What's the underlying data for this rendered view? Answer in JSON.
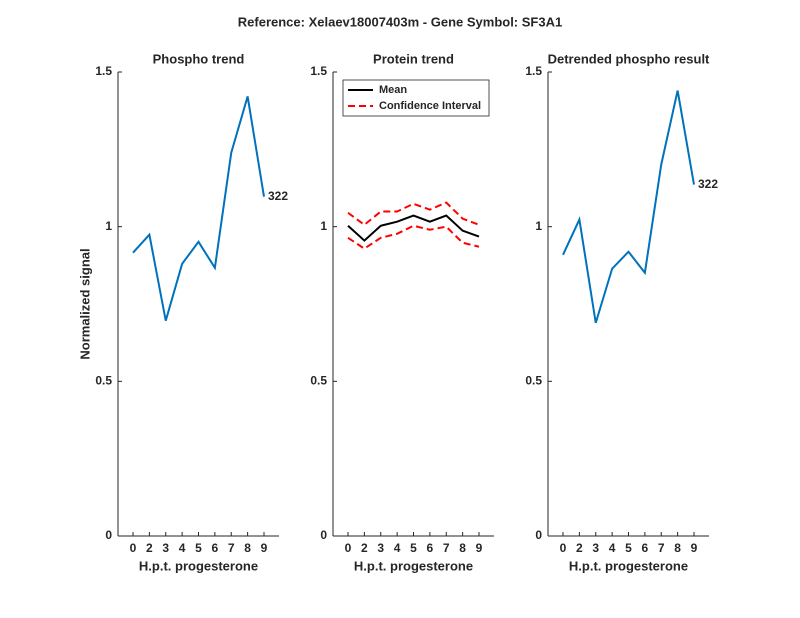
{
  "title": "Reference:  Xelaev18007403m - Gene Symbol:  SF3A1",
  "chart_data": [
    {
      "type": "line",
      "title": "Phospho trend",
      "x_label": "H.p.t. progesterone",
      "y_label": "Normalized signal",
      "categories": [
        0,
        2,
        3,
        4,
        5,
        6,
        7,
        8,
        9
      ],
      "series": [
        {
          "color": "#0072bd",
          "values": [
            0.916,
            0.974,
            0.696,
            0.88,
            0.951,
            0.867,
            1.239,
            1.421,
            1.097
          ]
        }
      ],
      "annotation": "322",
      "ylim": [
        0,
        1.5
      ],
      "yticks": [
        0,
        0.5,
        1,
        1.5
      ]
    },
    {
      "type": "line",
      "title": "Protein trend",
      "x_label": "H.p.t. progesterone",
      "categories": [
        0,
        2,
        3,
        4,
        5,
        6,
        7,
        8,
        9
      ],
      "series": [
        {
          "name": "Mean",
          "color": "#000000",
          "values": [
            1.003,
            0.955,
            1.003,
            1.016,
            1.036,
            1.016,
            1.036,
            0.987,
            0.968
          ]
        },
        {
          "name": "Confidence Interval",
          "color": "#ff0000",
          "dashed": true,
          "upper": [
            1.045,
            1.006,
            1.049,
            1.049,
            1.074,
            1.055,
            1.078,
            1.026,
            1.006
          ],
          "lower": [
            0.964,
            0.929,
            0.964,
            0.977,
            1.003,
            0.99,
            1.0,
            0.948,
            0.935
          ]
        }
      ],
      "legend": "northwest",
      "ylim": [
        0,
        1.5
      ],
      "yticks": [
        0,
        0.5,
        1,
        1.5
      ]
    },
    {
      "type": "line",
      "title": "Detrended phospho result",
      "x_label": "H.p.t. progesterone",
      "categories": [
        0,
        2,
        3,
        4,
        5,
        6,
        7,
        8,
        9
      ],
      "series": [
        {
          "color": "#0072bd",
          "values": [
            0.909,
            1.023,
            0.689,
            0.864,
            0.919,
            0.851,
            1.201,
            1.44,
            1.136
          ]
        }
      ],
      "annotation": "322",
      "ylim": [
        0,
        1.5
      ],
      "yticks": [
        0,
        0.5,
        1,
        1.5
      ]
    }
  ]
}
